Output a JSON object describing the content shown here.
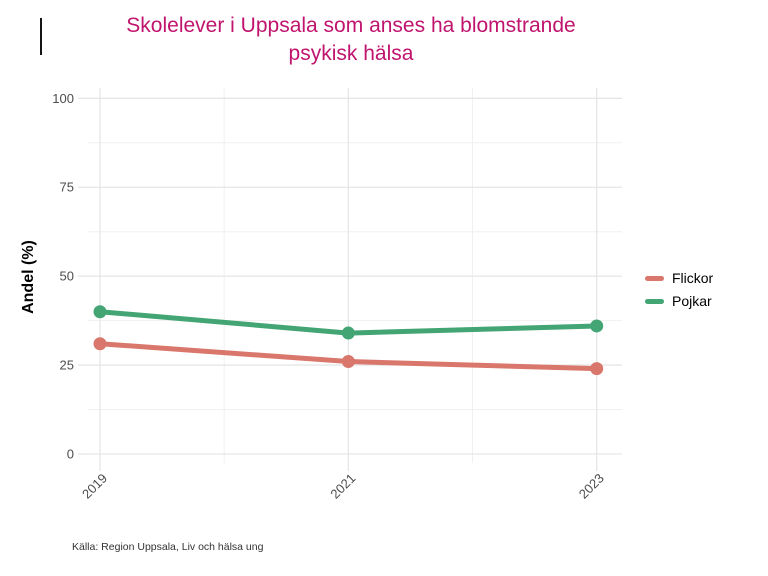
{
  "title": {
    "line1": "Skolelever i Uppsala som anses ha blomstrande",
    "line2": "psykisk hälsa"
  },
  "colors": {
    "title": "#C0146E",
    "axis_text": "#4D4D4D",
    "axis_title": "#000000",
    "grid_major": "#E6E6E6",
    "grid_minor": "#F0F0F0",
    "background": "#FFFFFF"
  },
  "legend": {
    "items": [
      {
        "label": "Flickor",
        "color": "#D9776C"
      },
      {
        "label": "Pojkar",
        "color": "#43A574"
      }
    ]
  },
  "caption": "Källa: Region Uppsala, Liv och hälsa ung",
  "chart_data": {
    "type": "line",
    "title": "Skolelever i Uppsala som anses ha blomstrande psykisk hälsa",
    "categories": [
      "2019",
      "2021",
      "2023"
    ],
    "series": [
      {
        "name": "Flickor",
        "color": "#D9776C",
        "values": [
          31,
          26,
          24
        ]
      },
      {
        "name": "Pojkar",
        "color": "#43A574",
        "values": [
          40,
          34,
          36
        ]
      }
    ],
    "xlabel": "",
    "ylabel": "Andel (%)",
    "ylim": [
      0,
      100
    ],
    "y_ticks": [
      0,
      25,
      50,
      75,
      100
    ],
    "x_tick_rotation": 45,
    "grid": true,
    "legend_position": "right",
    "caption": "Källa: Region Uppsala, Liv och hälsa ung"
  }
}
